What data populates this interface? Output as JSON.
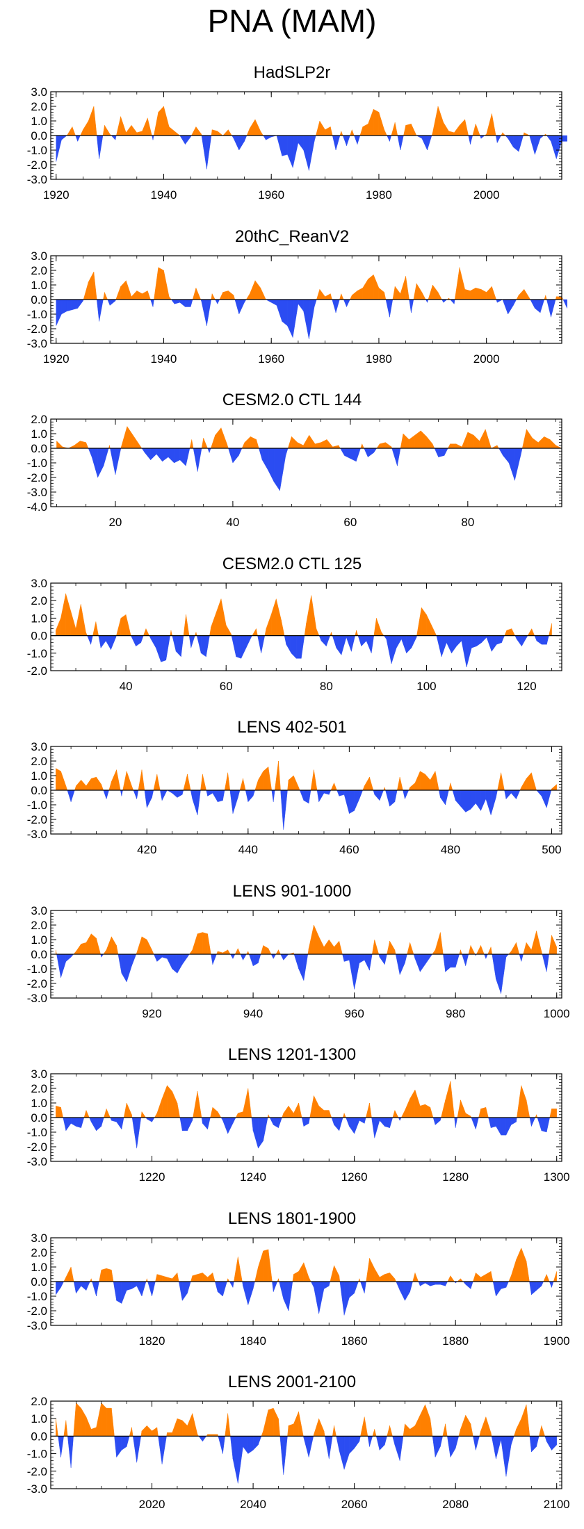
{
  "page_title": "PNA (MAM)",
  "colors": {
    "positive": "#ff8000",
    "negative": "#2b4cf2",
    "axis": "#000000"
  },
  "chart_data": [
    {
      "type": "area",
      "title": "HadSLP2r",
      "x_start": 1920,
      "ylim": [
        -3,
        3
      ],
      "yticks": [
        3,
        2,
        1,
        0,
        -1,
        -2,
        -3
      ],
      "ytick_labels": [
        "3.0",
        "2.0",
        "1.0",
        "0.0",
        "-1.0",
        "-2.0",
        "-3.0"
      ],
      "xlim": [
        1919,
        2014
      ],
      "xticks": [
        1920,
        1940,
        1960,
        1980,
        2000
      ],
      "xtick_labels": [
        "1920",
        "1940",
        "1960",
        "1980",
        "2000"
      ],
      "values": [
        -1.8,
        -0.3,
        0.0,
        0.6,
        -0.4,
        0.4,
        1.0,
        2.0,
        -1.6,
        0.7,
        0.1,
        -0.3,
        1.3,
        0.2,
        0.7,
        0.2,
        0.3,
        1.2,
        -0.3,
        1.6,
        2.0,
        0.6,
        0.3,
        0.0,
        -0.6,
        -0.1,
        0.6,
        0.1,
        -2.3,
        0.4,
        0.3,
        0.0,
        0.4,
        -0.2,
        -1.0,
        -0.4,
        0.5,
        1.1,
        0.3,
        -0.3,
        -0.1,
        0.0,
        -1.4,
        -1.3,
        -2.2,
        -0.5,
        -1.0,
        -2.4,
        -0.4,
        1.0,
        0.4,
        0.6,
        -1.0,
        0.3,
        -0.7,
        0.4,
        -0.6,
        0.6,
        0.8,
        1.8,
        1.6,
        0.4,
        -0.4,
        0.9,
        -1.0,
        0.7,
        0.8,
        0.0,
        -0.2,
        -1.0,
        0.2,
        2.0,
        0.9,
        0.3,
        0.2,
        0.7,
        1.1,
        -0.6,
        0.8,
        -0.2,
        0.1,
        1.5,
        -0.5,
        0.2,
        -0.2,
        -0.8,
        -1.1,
        0.2,
        0.0,
        -1.3,
        -0.2,
        0.1,
        -0.4,
        -1.6,
        -0.4,
        -0.4
      ]
    },
    {
      "type": "area",
      "title": "20thC_ReanV2",
      "x_start": 1920,
      "ylim": [
        -3,
        3
      ],
      "yticks": [
        3,
        2,
        1,
        0,
        -1,
        -2,
        -3
      ],
      "ytick_labels": [
        "3.0",
        "2.0",
        "1.0",
        "0.0",
        "-1.0",
        "-2.0",
        "-3.0"
      ],
      "xlim": [
        1919,
        2014
      ],
      "xticks": [
        1920,
        1940,
        1960,
        1980,
        2000
      ],
      "xtick_labels": [
        "1920",
        "1940",
        "1960",
        "1980",
        "2000"
      ],
      "values": [
        -1.8,
        -1.0,
        -0.8,
        -0.7,
        -0.6,
        -0.1,
        1.2,
        1.9,
        -1.5,
        0.5,
        -0.4,
        -0.1,
        0.9,
        1.3,
        0.2,
        0.6,
        0.4,
        0.6,
        -0.5,
        2.2,
        2.0,
        0.2,
        -0.3,
        -0.2,
        -0.5,
        -0.5,
        0.8,
        -0.1,
        -1.8,
        0.4,
        -0.3,
        0.5,
        0.6,
        0.3,
        -1.0,
        -0.2,
        0.4,
        1.3,
        0.8,
        0.0,
        -0.2,
        -0.4,
        -1.5,
        -1.8,
        -2.6,
        -0.3,
        -0.8,
        -2.7,
        -0.5,
        0.7,
        0.2,
        0.4,
        -0.9,
        0.4,
        -0.5,
        0.3,
        0.6,
        0.8,
        1.4,
        1.7,
        0.8,
        0.5,
        -1.2,
        0.9,
        0.4,
        1.6,
        -0.9,
        1.1,
        0.5,
        -0.2,
        1.0,
        0.5,
        -0.2,
        0.1,
        -0.3,
        2.2,
        0.7,
        0.6,
        0.8,
        0.7,
        0.5,
        0.9,
        -0.2,
        0.0,
        -1.0,
        -0.4,
        0.3,
        0.7,
        0.1,
        -0.6,
        -0.9,
        0.3,
        -1.2,
        0.2,
        0.2,
        -0.6
      ]
    },
    {
      "type": "area",
      "title": "CESM2.0 CTL 144",
      "x_start": 10,
      "ylim": [
        -4,
        2
      ],
      "yticks": [
        2,
        1,
        0,
        -1,
        -2,
        -3,
        -4
      ],
      "ytick_labels": [
        "2.0",
        "1.0",
        "0.0",
        "-1.0",
        "-2.0",
        "-3.0",
        "-4.0"
      ],
      "xlim": [
        9,
        96
      ],
      "xticks": [
        20,
        40,
        60,
        80
      ],
      "xtick_labels": [
        "20",
        "40",
        "60",
        "80"
      ],
      "values": [
        0.5,
        0.1,
        0.0,
        0.2,
        0.5,
        0.4,
        -0.6,
        -2.0,
        -1.2,
        0.2,
        -1.8,
        0.1,
        1.5,
        0.9,
        0.3,
        -0.3,
        -0.8,
        -0.4,
        -0.9,
        -0.6,
        -1.0,
        -0.8,
        -1.2,
        0.6,
        -1.6,
        0.7,
        -0.3,
        0.9,
        1.4,
        0.3,
        -1.0,
        -0.5,
        0.4,
        0.8,
        0.6,
        -0.8,
        -1.5,
        -2.3,
        -2.9,
        -0.5,
        0.8,
        0.4,
        0.2,
        0.9,
        0.3,
        0.4,
        0.6,
        0.1,
        0.2,
        -0.5,
        -0.7,
        -0.9,
        0.3,
        -0.6,
        -0.3,
        0.3,
        0.4,
        0.1,
        -1.2,
        1.0,
        0.6,
        0.9,
        1.2,
        0.8,
        0.3,
        -0.6,
        -0.5,
        0.3,
        0.3,
        0.1,
        1.1,
        0.9,
        0.5,
        1.3,
        0.0,
        0.2,
        -0.5,
        -1.0,
        -2.2,
        -0.5,
        1.3,
        0.7,
        0.4,
        0.8,
        0.6,
        0.2,
        0.0
      ]
    },
    {
      "type": "area",
      "title": "CESM2.0 CTL 125",
      "x_start": 26,
      "ylim": [
        -2,
        3
      ],
      "yticks": [
        3,
        2,
        1,
        0,
        -1,
        -2
      ],
      "ytick_labels": [
        "3.0",
        "2.0",
        "1.0",
        "0.0",
        "-1.0",
        "-2.0"
      ],
      "xlim": [
        25,
        127
      ],
      "xticks": [
        40,
        60,
        80,
        100,
        120
      ],
      "xtick_labels": [
        "40",
        "60",
        "80",
        "100",
        "120"
      ],
      "values": [
        0.3,
        1.0,
        2.4,
        1.4,
        0.4,
        1.8,
        0.2,
        -0.5,
        0.8,
        -0.7,
        -0.3,
        -0.8,
        -0.1,
        1.0,
        1.2,
        0.0,
        -0.6,
        -0.4,
        0.4,
        -0.2,
        -0.7,
        -1.5,
        -1.4,
        0.3,
        -0.9,
        -1.2,
        1.2,
        -0.7,
        0.2,
        -1.0,
        -1.2,
        0.5,
        1.3,
        2.1,
        0.6,
        0.1,
        -1.2,
        -1.3,
        -0.7,
        -0.1,
        0.4,
        -1.0,
        0.4,
        1.2,
        2.1,
        0.9,
        -0.5,
        -1.0,
        -1.3,
        -1.3,
        0.7,
        2.3,
        0.4,
        -0.3,
        -0.6,
        0.2,
        -0.7,
        -1.1,
        -0.1,
        -0.9,
        0.3,
        -0.6,
        -0.3,
        -1.0,
        1.0,
        0.2,
        -0.2,
        -1.6,
        -0.7,
        -0.2,
        -1.0,
        -0.7,
        -0.1,
        1.6,
        1.2,
        0.6,
        0.0,
        -1.2,
        -0.4,
        -1.0,
        -0.6,
        -0.3,
        -1.8,
        -0.7,
        -0.6,
        -0.4,
        -0.1,
        -0.9,
        -0.5,
        -0.4,
        0.3,
        0.4,
        -0.2,
        -0.6,
        -0.1,
        0.4,
        -0.3,
        -0.5,
        -0.5,
        0.7
      ]
    },
    {
      "type": "area",
      "title": "LENS 402-501",
      "x_start": 402,
      "ylim": [
        -3,
        3
      ],
      "yticks": [
        3,
        2,
        1,
        0,
        -1,
        -2,
        -3
      ],
      "ytick_labels": [
        "3.0",
        "2.0",
        "1.0",
        "0.0",
        "-1.0",
        "-2.0",
        "-3.0"
      ],
      "xlim": [
        401,
        502
      ],
      "xticks": [
        420,
        440,
        460,
        480,
        500
      ],
      "xtick_labels": [
        "420",
        "440",
        "460",
        "480",
        "500"
      ],
      "values": [
        1.5,
        1.3,
        0.3,
        -0.8,
        0.3,
        0.7,
        0.3,
        0.8,
        0.9,
        0.4,
        -0.6,
        0.6,
        1.4,
        -0.4,
        1.3,
        0.3,
        -0.6,
        1.4,
        -1.2,
        -0.5,
        1.1,
        -0.7,
        0.0,
        -0.2,
        -0.5,
        -0.3,
        1.1,
        -0.6,
        -1.7,
        1.1,
        -0.4,
        -0.2,
        -0.8,
        -0.7,
        1.2,
        -1.6,
        -0.5,
        0.8,
        -0.8,
        -0.4,
        0.7,
        1.3,
        1.6,
        -0.8,
        2.0,
        -2.7,
        0.7,
        1.0,
        0.2,
        -0.7,
        -0.9,
        1.4,
        -0.8,
        -0.2,
        -0.3,
        0.5,
        -0.4,
        -0.3,
        -1.6,
        -1.4,
        -0.6,
        0.3,
        0.9,
        -0.3,
        -0.7,
        0.2,
        -1.1,
        -0.8,
        0.9,
        -0.6,
        0.2,
        0.5,
        1.3,
        1.1,
        0.7,
        1.3,
        -0.5,
        -1.0,
        0.5,
        -0.7,
        -1.1,
        -1.5,
        -1.3,
        -0.9,
        -1.4,
        -0.6,
        -1.7,
        -0.5,
        1.2,
        -0.6,
        -0.2,
        -0.6,
        0.2,
        0.8,
        1.2,
        0.0,
        -0.4,
        -1.2,
        0.1,
        0.4
      ]
    },
    {
      "type": "area",
      "title": "LENS 901-1000",
      "x_start": 901,
      "ylim": [
        -3,
        3
      ],
      "yticks": [
        3,
        2,
        1,
        0,
        -1,
        -2,
        -3
      ],
      "ytick_labels": [
        "3.0",
        "2.0",
        "1.0",
        "0.0",
        "-1.0",
        "-2.0",
        "-3.0"
      ],
      "xlim": [
        900,
        1001
      ],
      "xticks": [
        920,
        940,
        960,
        980,
        1000
      ],
      "xtick_labels": [
        "920",
        "940",
        "960",
        "980",
        "1000"
      ],
      "values": [
        0.3,
        -1.6,
        -0.5,
        -0.2,
        0.2,
        0.7,
        0.8,
        1.4,
        1.1,
        -0.2,
        0.3,
        1.2,
        0.6,
        -1.3,
        -1.9,
        -0.8,
        0.1,
        1.2,
        1.0,
        0.3,
        -0.5,
        -0.2,
        -0.3,
        -1.0,
        -1.3,
        -0.7,
        -0.2,
        0.3,
        1.4,
        1.5,
        1.4,
        -0.7,
        0.2,
        0.1,
        0.3,
        -0.3,
        0.4,
        -0.4,
        0.2,
        -0.8,
        -0.6,
        0.6,
        0.4,
        -0.3,
        0.3,
        -0.4,
        0.0,
        0.1,
        -1.0,
        -1.8,
        0.4,
        2.0,
        1.2,
        0.5,
        1.0,
        0.5,
        0.9,
        -0.5,
        -0.4,
        -2.4,
        -0.6,
        -0.4,
        -1.1,
        1.0,
        -0.2,
        -0.7,
        0.9,
        0.3,
        -1.4,
        -0.6,
        0.8,
        -0.3,
        -1.2,
        -0.7,
        -0.2,
        0.3,
        1.5,
        -1.2,
        -0.9,
        -0.9,
        0.3,
        -0.8,
        0.6,
        -0.1,
        0.6,
        -0.3,
        0.5,
        -1.7,
        -2.7,
        -0.2,
        0.2,
        0.8,
        -0.5,
        0.8,
        0.3,
        1.6,
        0.2,
        -1.2,
        1.3,
        0.5
      ]
    },
    {
      "type": "area",
      "title": "LENS 1201-1300",
      "x_start": 1201,
      "ylim": [
        -3,
        3
      ],
      "yticks": [
        3,
        2,
        1,
        0,
        -1,
        -2,
        -3
      ],
      "ytick_labels": [
        "3.0",
        "2.0",
        "1.0",
        "0.0",
        "-1.0",
        "-2.0",
        "-3.0"
      ],
      "xlim": [
        1200,
        1301
      ],
      "xticks": [
        1220,
        1240,
        1260,
        1280,
        1300
      ],
      "xtick_labels": [
        "1220",
        "1240",
        "1260",
        "1280",
        "1300"
      ],
      "values": [
        0.8,
        0.7,
        -0.9,
        -0.4,
        -0.6,
        -0.7,
        0.5,
        -0.3,
        -0.9,
        -0.6,
        0.6,
        -0.2,
        -0.3,
        -0.8,
        1.0,
        0.2,
        -2.1,
        0.4,
        -0.1,
        -0.3,
        0.3,
        1.3,
        2.2,
        1.8,
        1.0,
        -0.9,
        -0.9,
        -0.2,
        1.8,
        -0.4,
        -0.8,
        0.7,
        0.4,
        -0.2,
        -1.1,
        -0.4,
        0.3,
        0.4,
        2.0,
        -0.9,
        -2.1,
        -1.6,
        0.2,
        -0.5,
        -0.7,
        0.3,
        0.8,
        0.3,
        1.0,
        -0.6,
        -0.4,
        1.5,
        0.8,
        0.5,
        0.5,
        -0.5,
        -0.9,
        0.3,
        -0.6,
        -1.1,
        -0.2,
        -0.4,
        1.0,
        -1.4,
        -0.2,
        -0.6,
        -0.7,
        0.5,
        -0.2,
        0.5,
        1.3,
        1.9,
        0.8,
        0.9,
        0.7,
        -0.5,
        -0.2,
        1.2,
        2.5,
        -0.7,
        1.2,
        0.3,
        0.1,
        -0.8,
        0.6,
        0.7,
        -0.7,
        -0.6,
        -1.2,
        -1.2,
        -0.5,
        -0.3,
        2.2,
        1.2,
        -0.6,
        0.2,
        -0.9,
        -1.0,
        0.6,
        0.6
      ]
    },
    {
      "type": "area",
      "title": "LENS 1801-1900",
      "x_start": 1801,
      "ylim": [
        -3,
        3
      ],
      "yticks": [
        3,
        2,
        1,
        0,
        -1,
        -2,
        -3
      ],
      "ytick_labels": [
        "3.0",
        "2.0",
        "1.0",
        "0.0",
        "-1.0",
        "-2.0",
        "-3.0"
      ],
      "xlim": [
        1800,
        1901
      ],
      "xticks": [
        1820,
        1840,
        1860,
        1880,
        1900
      ],
      "xtick_labels": [
        "1820",
        "1840",
        "1860",
        "1880",
        "1900"
      ],
      "values": [
        -0.9,
        -0.4,
        0.3,
        1.0,
        -0.8,
        -0.3,
        -0.6,
        0.2,
        -1.0,
        0.8,
        0.9,
        0.8,
        -1.3,
        -1.5,
        -0.6,
        -0.5,
        -0.3,
        -1.0,
        0.2,
        -1.0,
        0.5,
        0.4,
        0.3,
        0.2,
        0.6,
        -1.3,
        -0.8,
        0.4,
        0.5,
        0.6,
        0.3,
        0.6,
        -0.7,
        -1.0,
        0.2,
        -0.4,
        1.7,
        -0.3,
        -1.6,
        -0.5,
        1.0,
        2.1,
        2.2,
        -0.7,
        0.2,
        -1.2,
        -2.0,
        0.5,
        0.7,
        1.3,
        0.3,
        -0.4,
        -2.2,
        -0.5,
        -0.3,
        1.1,
        0.4,
        -2.3,
        -1.1,
        -0.8,
        0.2,
        -0.8,
        1.6,
        0.9,
        0.3,
        0.5,
        0.6,
        0.2,
        -0.6,
        -1.3,
        -0.7,
        0.6,
        -0.3,
        -0.1,
        -0.3,
        -0.2,
        -0.2,
        -0.3,
        0.4,
        -0.1,
        0.2,
        -0.2,
        -0.5,
        0.6,
        0.3,
        0.5,
        0.7,
        -1.0,
        -0.5,
        -0.4,
        0.4,
        1.5,
        2.3,
        1.4,
        -0.9,
        -0.6,
        -0.3,
        0.5,
        -0.4,
        0.7
      ]
    },
    {
      "type": "area",
      "title": "LENS 2001-2100",
      "x_start": 2001,
      "ylim": [
        -3,
        2
      ],
      "yticks": [
        2,
        1,
        0,
        -1,
        -2,
        -3
      ],
      "ytick_labels": [
        "2.0",
        "1.0",
        "0.0",
        "-1.0",
        "-2.0",
        "-3.0"
      ],
      "xlim": [
        2000,
        2101
      ],
      "xticks": [
        2020,
        2040,
        2060,
        2080,
        2100
      ],
      "xtick_labels": [
        "2020",
        "2040",
        "2060",
        "2080",
        "2100"
      ],
      "values": [
        1.0,
        -1.2,
        0.9,
        -1.8,
        1.9,
        1.6,
        1.1,
        0.4,
        0.5,
        1.9,
        1.6,
        1.6,
        -1.2,
        -0.8,
        -0.6,
        0.5,
        -1.5,
        0.3,
        0.6,
        0.3,
        0.5,
        -1.6,
        0.2,
        0.2,
        1.0,
        0.9,
        0.6,
        1.3,
        0.1,
        -0.3,
        0.1,
        0.1,
        0.1,
        -1.0,
        1.3,
        -1.3,
        -2.7,
        -0.6,
        -1.0,
        -0.8,
        -0.5,
        0.3,
        1.5,
        1.6,
        1.0,
        -2.2,
        0.6,
        0.7,
        1.4,
        -0.1,
        -1.2,
        0.1,
        1.0,
        0.3,
        -1.3,
        0.6,
        -0.8,
        -1.9,
        -1.0,
        -0.7,
        -0.3,
        1.1,
        -0.6,
        0.4,
        -0.8,
        -0.5,
        0.6,
        -0.5,
        -1.4,
        0.7,
        0.4,
        0.6,
        1.2,
        1.8,
        1.0,
        -1.2,
        -0.6,
        0.7,
        -1.2,
        -0.7,
        0.4,
        1.2,
        0.7,
        -0.8,
        0.3,
        1.1,
        0.2,
        -1.3,
        -0.2,
        -2.3,
        -0.5,
        0.4,
        1.0,
        1.8,
        -0.9,
        -0.6,
        0.6,
        -0.3,
        -0.8,
        -0.5
      ]
    }
  ]
}
